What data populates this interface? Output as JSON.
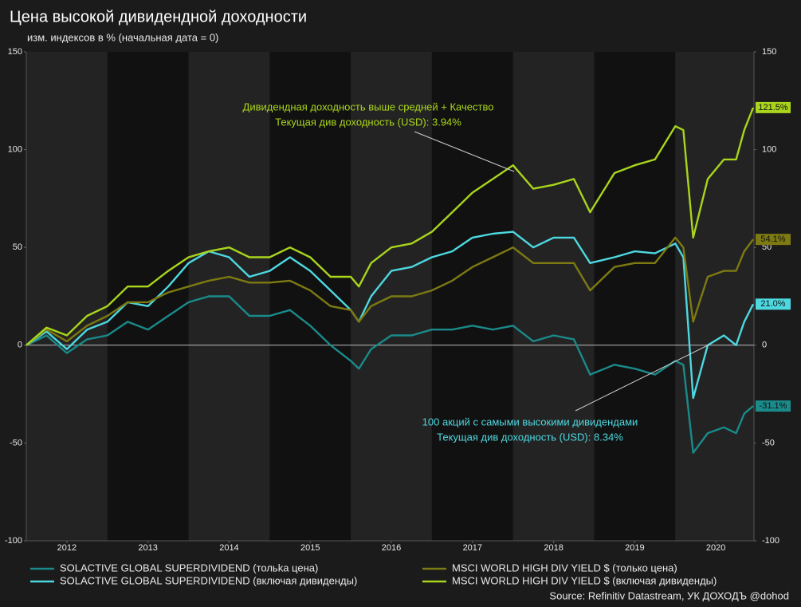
{
  "chart_data": {
    "type": "line",
    "title": "Цена высокой дивидендной доходности",
    "subtitle": "изм. индексов в % (начальная дата = 0)",
    "source": "Source: Refinitiv Datastream, УК ДОХОДЪ @dohod",
    "x": [
      2012.0,
      2012.25,
      2012.5,
      2012.75,
      2013.0,
      2013.25,
      2013.5,
      2013.75,
      2014.0,
      2014.25,
      2014.5,
      2014.75,
      2015.0,
      2015.25,
      2015.5,
      2015.75,
      2016.0,
      2016.1,
      2016.25,
      2016.5,
      2016.75,
      2017.0,
      2017.25,
      2017.5,
      2017.75,
      2018.0,
      2018.25,
      2018.5,
      2018.75,
      2018.95,
      2019.25,
      2019.5,
      2019.75,
      2020.0,
      2020.1,
      2020.22,
      2020.4,
      2020.6,
      2020.75,
      2020.85,
      2020.96
    ],
    "xlim": [
      2012.0,
      2020.97
    ],
    "xticks": [
      {
        "value": 2012.5,
        "label": "2012"
      },
      {
        "value": 2013.5,
        "label": "2013"
      },
      {
        "value": 2014.5,
        "label": "2014"
      },
      {
        "value": 2015.5,
        "label": "2015"
      },
      {
        "value": 2016.5,
        "label": "2016"
      },
      {
        "value": 2017.5,
        "label": "2017"
      },
      {
        "value": 2018.5,
        "label": "2018"
      },
      {
        "value": 2019.5,
        "label": "2019"
      },
      {
        "value": 2020.5,
        "label": "2020"
      }
    ],
    "ylim": [
      -100,
      150
    ],
    "yticks": [
      -100,
      -50,
      0,
      50,
      100,
      150
    ],
    "y2lim": [
      -100,
      150
    ],
    "y2ticks": [
      -100,
      -50,
      0,
      50,
      100,
      150
    ],
    "zero_line": true,
    "year_bands": true,
    "series": [
      {
        "name": "SOLACTIVE GLOBAL SUPERDIVIDEND (тольkа цена)",
        "color": "#1a8a8a",
        "values": [
          0,
          5,
          -4,
          3,
          5,
          12,
          8,
          15,
          22,
          25,
          25,
          15,
          15,
          18,
          10,
          0,
          -8,
          -12,
          -2,
          5,
          5,
          8,
          8,
          10,
          8,
          10,
          2,
          5,
          3,
          -15,
          -10,
          -12,
          -15,
          -8,
          -10,
          -55,
          -45,
          -42,
          -45,
          -35,
          -31.1
        ],
        "value_labels": [
          null,
          null,
          null,
          null,
          null,
          null,
          null,
          null,
          null,
          null,
          null,
          null,
          null,
          null,
          null,
          null,
          null,
          null,
          null,
          null,
          null,
          null,
          null,
          null,
          null,
          null,
          null,
          null,
          null,
          null,
          null,
          null,
          null,
          null,
          null,
          null,
          null,
          null,
          null,
          null,
          "-31.1%"
        ]
      },
      {
        "name": "SOLACTIVE GLOBAL SUPERDIVIDEND (включая дивиденды)",
        "color": "#4dd8e0",
        "values": [
          0,
          7,
          -2,
          8,
          12,
          22,
          20,
          30,
          42,
          48,
          45,
          35,
          38,
          45,
          38,
          28,
          18,
          12,
          25,
          38,
          40,
          45,
          48,
          55,
          57,
          58,
          50,
          55,
          55,
          42,
          45,
          48,
          47,
          52,
          45,
          -27,
          0,
          5,
          0,
          12,
          21.0
        ],
        "value_labels": [
          null,
          null,
          null,
          null,
          null,
          null,
          null,
          null,
          null,
          null,
          null,
          null,
          null,
          null,
          null,
          null,
          null,
          null,
          null,
          null,
          null,
          null,
          null,
          null,
          null,
          null,
          null,
          null,
          null,
          null,
          null,
          null,
          null,
          null,
          null,
          null,
          null,
          null,
          null,
          null,
          "21.0%"
        ]
      },
      {
        "name": "MSCI WORLD HIGH DIV YIELD $ (только цена)",
        "color": "#7d7a12",
        "values": [
          0,
          8,
          2,
          10,
          15,
          22,
          22,
          27,
          30,
          33,
          35,
          32,
          32,
          33,
          28,
          20,
          18,
          12,
          20,
          25,
          25,
          28,
          33,
          40,
          45,
          50,
          42,
          42,
          42,
          28,
          40,
          42,
          42,
          55,
          50,
          12,
          35,
          38,
          38,
          48,
          54.1
        ],
        "value_labels": [
          null,
          null,
          null,
          null,
          null,
          null,
          null,
          null,
          null,
          null,
          null,
          null,
          null,
          null,
          null,
          null,
          null,
          null,
          null,
          null,
          null,
          null,
          null,
          null,
          null,
          null,
          null,
          null,
          null,
          null,
          null,
          null,
          null,
          null,
          null,
          null,
          null,
          null,
          null,
          null,
          "54.1%"
        ]
      },
      {
        "name": "MSCI WORLD HIGH DIV YIELD $ (включая дивиденды)",
        "color": "#a9d51c",
        "values": [
          0,
          9,
          5,
          15,
          20,
          30,
          30,
          38,
          45,
          48,
          50,
          45,
          45,
          50,
          45,
          35,
          35,
          30,
          42,
          50,
          52,
          58,
          68,
          78,
          85,
          92,
          80,
          82,
          85,
          68,
          88,
          92,
          95,
          112,
          110,
          55,
          85,
          95,
          95,
          110,
          121.5
        ],
        "value_labels": [
          null,
          null,
          null,
          null,
          null,
          null,
          null,
          null,
          null,
          null,
          null,
          null,
          null,
          null,
          null,
          null,
          null,
          null,
          null,
          null,
          null,
          null,
          null,
          null,
          null,
          null,
          null,
          null,
          null,
          null,
          null,
          null,
          null,
          null,
          null,
          null,
          null,
          null,
          null,
          null,
          "121.5%"
        ]
      }
    ],
    "annotations": [
      {
        "lines": [
          "Дивидендная доходность выше средней + Качество",
          "Текущая див доходность (USD): 3.94%"
        ],
        "color": "#a9d51c"
      },
      {
        "lines": [
          "100 акций с самыми высокими дивидендами",
          "Текущая див доходность (USD): 8.34%"
        ],
        "color": "#4dd8e0"
      }
    ]
  }
}
